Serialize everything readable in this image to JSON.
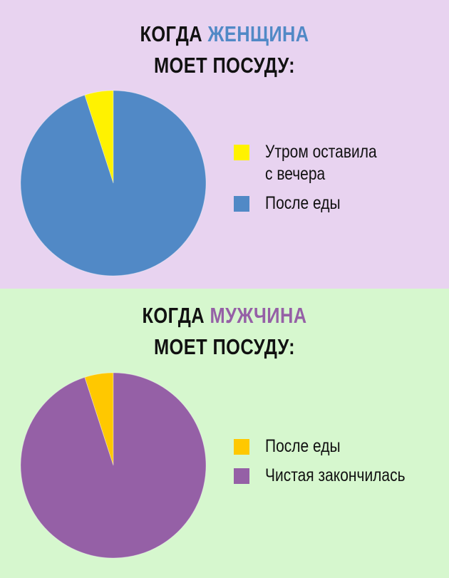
{
  "colors": {
    "top_background": "#e8d3f0",
    "bottom_background": "#d6f7ce",
    "woman_accent": "#5189c6",
    "man_accent": "#9560a6"
  },
  "chart_data": [
    {
      "type": "pie",
      "title_prefix": "КОГДА ",
      "title_accent": "ЖЕНЩИНА",
      "title_line2": "МОЕТ ПОСУДУ:",
      "legend_position": "right",
      "slices": [
        {
          "label": "Утром оставила\nс вечера",
          "value": 5,
          "color": "#fff200"
        },
        {
          "label": "После еды",
          "value": 95,
          "color": "#5189c6"
        }
      ]
    },
    {
      "type": "pie",
      "title_prefix": "КОГДА ",
      "title_accent": "МУЖЧИНА",
      "title_line2": "МОЕТ ПОСУДУ:",
      "legend_position": "right",
      "slices": [
        {
          "label": "После еды",
          "value": 5,
          "color": "#ffc800"
        },
        {
          "label": "Чистая закончилась",
          "value": 95,
          "color": "#9560a6"
        }
      ]
    }
  ]
}
